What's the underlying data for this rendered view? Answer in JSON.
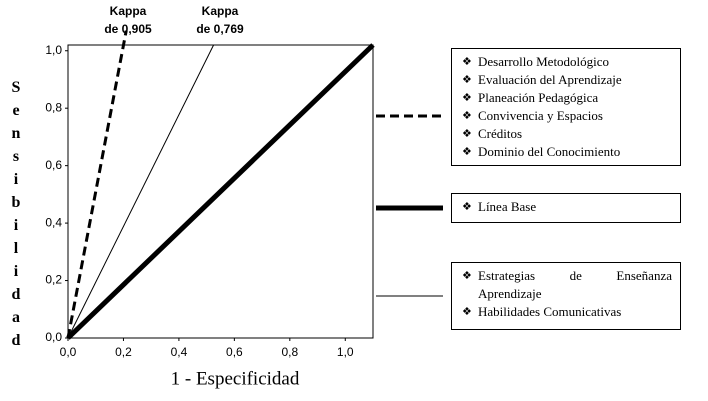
{
  "chart_data": {
    "type": "line",
    "xlabel": "1 - Especificidad",
    "ylabel": "Sensibilidad",
    "xlim": [
      0,
      1.1
    ],
    "ylim": [
      0,
      1.02
    ],
    "xticks": [
      {
        "value": 0,
        "label": "0,0"
      },
      {
        "value": 0.2,
        "label": "0,2"
      },
      {
        "value": 0.4,
        "label": "0,4"
      },
      {
        "value": 0.6,
        "label": "0,6"
      },
      {
        "value": 0.8,
        "label": "0,8"
      },
      {
        "value": 1.0,
        "label": "1,0"
      }
    ],
    "yticks": [
      {
        "value": 0,
        "label": "0,0"
      },
      {
        "value": 0.2,
        "label": "0,2"
      },
      {
        "value": 0.4,
        "label": "0,4"
      },
      {
        "value": 0.6,
        "label": "0,6"
      },
      {
        "value": 0.8,
        "label": "0,8"
      },
      {
        "value": 1.0,
        "label": "1,0"
      }
    ],
    "series": [
      {
        "color": "#000000",
        "line_style": "dashed",
        "line_width": 3,
        "x": [
          0,
          0.21
        ],
        "values": [
          0,
          1.07
        ],
        "items": [
          "Desarrollo Metodológico",
          "Evaluación del Aprendizaje",
          "Planeación Pedagógica",
          "Convivencia y Espacios",
          "Créditos",
          "Dominio del Conocimiento"
        ]
      },
      {
        "color": "#000000",
        "line_style": "solid",
        "line_width": 5,
        "x": [
          0,
          1.1
        ],
        "values": [
          0,
          1.02
        ],
        "items": [
          "Línea Base"
        ]
      },
      {
        "color": "#000000",
        "line_style": "solid",
        "line_width": 1,
        "x": [
          0,
          0.525
        ],
        "values": [
          0,
          1.02
        ],
        "items": [
          "Estrategias de Enseñanza Aprendizaje",
          "Habilidades Comunicativas"
        ]
      }
    ],
    "annotations": [
      {
        "lines": [
          "Kappa",
          "de 0,905"
        ]
      },
      {
        "lines": [
          "Kappa",
          "de 0,769"
        ]
      }
    ]
  }
}
